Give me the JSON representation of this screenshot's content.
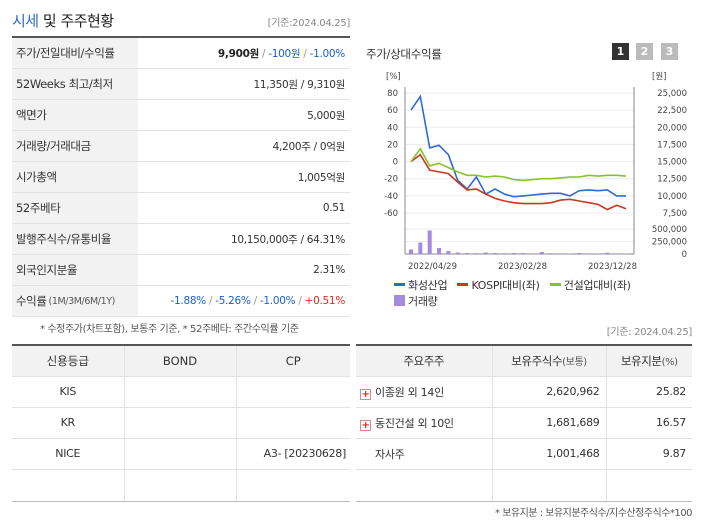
{
  "header": {
    "title_accent": "시세",
    "title_rest": "및 주주현황",
    "date": "[기준:2024.04.25]"
  },
  "price_table": {
    "rows": [
      {
        "label": "주가/전일대비/수익률"
      },
      {
        "label": "52Weeks 최고/최저",
        "value": "11,350원 / 9,310원"
      },
      {
        "label": "액면가",
        "value": "5,000원"
      },
      {
        "label": "거래량/거래대금",
        "value": "4,200주 / 0억원"
      },
      {
        "label": "시가총액",
        "value": "1,005억원"
      },
      {
        "label": "52주베타",
        "value": "0.51"
      },
      {
        "label": "발행주식수/유통비율",
        "value": "10,150,000주 / 64.31%"
      },
      {
        "label": "외국인지분율",
        "value": "2.31%"
      },
      {
        "label": "수익률",
        "sub": "(1M/3M/6M/1Y)"
      }
    ],
    "price": "9,900원",
    "change": "-100원",
    "change_pct": "-1.00%",
    "returns": [
      "-1.88%",
      "-5.26%",
      "-1.00%",
      "+0.51%"
    ]
  },
  "note1": "* 수정주가(차트포함), 보통주 기준, * 52주베타: 주간수익률 기준",
  "chart": {
    "title": "주가/상대수익률",
    "pages": [
      "1",
      "2",
      "3"
    ],
    "active_page": "1",
    "left_unit": "[%]",
    "right_unit": "[원]",
    "colors": {
      "stock": "#2d6bd4",
      "kospi": "#c9381f",
      "sector": "#86c22e",
      "volume": "#a58be0"
    },
    "legend": {
      "stock": "화성산업",
      "kospi": "KOSPI대비(좌)",
      "sector": "건설업대비(좌)",
      "volume": "거래량"
    }
  },
  "chart_data": {
    "type": "line",
    "x_labels": [
      "2022/04/29",
      "2023/02/28",
      "2023/12/28"
    ],
    "y_left": {
      "unit": "%",
      "range": [
        -60,
        80
      ],
      "ticks": [
        "80",
        "60",
        "40",
        "20",
        "0",
        "-20",
        "-40",
        "-60"
      ]
    },
    "y_right_price": {
      "unit": "원",
      "range": [
        7500,
        25000
      ],
      "ticks": [
        "25,000",
        "22,500",
        "20,000",
        "17,500",
        "15,000",
        "12,500",
        "10,000",
        "7,500"
      ]
    },
    "y_right_volume": {
      "range": [
        0,
        500000
      ],
      "ticks": [
        "500,000",
        "250,000",
        "0"
      ]
    },
    "series": [
      {
        "name": "화성산업",
        "axis": "left",
        "values": [
          60,
          76,
          16,
          19,
          8,
          -22,
          -32,
          -18,
          -38,
          -32,
          -38,
          -41,
          -40,
          -39,
          -38,
          -37,
          -37,
          -40,
          -34,
          -33,
          -34,
          -33,
          -40,
          -40
        ]
      },
      {
        "name": "KOSPI대비(좌)",
        "axis": "left",
        "values": [
          0,
          8,
          -10,
          -12,
          -14,
          -24,
          -33,
          -32,
          -38,
          -43,
          -46,
          -48,
          -49,
          -49,
          -49,
          -48,
          -45,
          -44,
          -46,
          -48,
          -50,
          -56,
          -51,
          -55
        ]
      },
      {
        "name": "건설업대비(좌)",
        "axis": "left",
        "values": [
          0,
          15,
          -5,
          -2,
          -7,
          -12,
          -16,
          -16,
          -18,
          -17,
          -18,
          -21,
          -22,
          -21,
          -20,
          -20,
          -19,
          -18,
          -18,
          -16,
          -17,
          -16,
          -16,
          -17
        ]
      },
      {
        "name": "거래량",
        "axis": "volume",
        "values": [
          90000,
          230000,
          470000,
          120000,
          60000,
          30000,
          20000,
          15000,
          30000,
          20000,
          15000,
          20000,
          18000,
          12000,
          40000,
          15000,
          12000,
          10000,
          20000,
          12000,
          10000,
          25000,
          12000,
          10000
        ]
      }
    ]
  },
  "credit_table": {
    "headers": [
      "신용등급",
      "BOND",
      "CP"
    ],
    "rows": [
      [
        "KIS",
        "",
        ""
      ],
      [
        "KR",
        "",
        ""
      ],
      [
        "NICE",
        "",
        "A3- [20230628]"
      ],
      [
        "",
        "",
        ""
      ]
    ]
  },
  "holders_table": {
    "headers": {
      "name": "주요주주",
      "shares": "보유주식수",
      "shares_unit": "(보통)",
      "pct": "보유지분",
      "pct_unit": "(%)"
    },
    "rows": [
      {
        "name": "이종원 외 14인",
        "shares": "2,620,962",
        "pct": "25.82",
        "expand": true
      },
      {
        "name": "동진건설 외 10인",
        "shares": "1,681,689",
        "pct": "16.57",
        "expand": true
      },
      {
        "name": "자사주",
        "shares": "1,001,468",
        "pct": "9.87",
        "expand": false
      },
      {
        "name": "",
        "shares": "",
        "pct": "",
        "expand": false
      }
    ],
    "date": "[기준: 2024.04.25]"
  },
  "note2": "* 보유지분 : 보유지분주식수/지수산정주식수*100"
}
